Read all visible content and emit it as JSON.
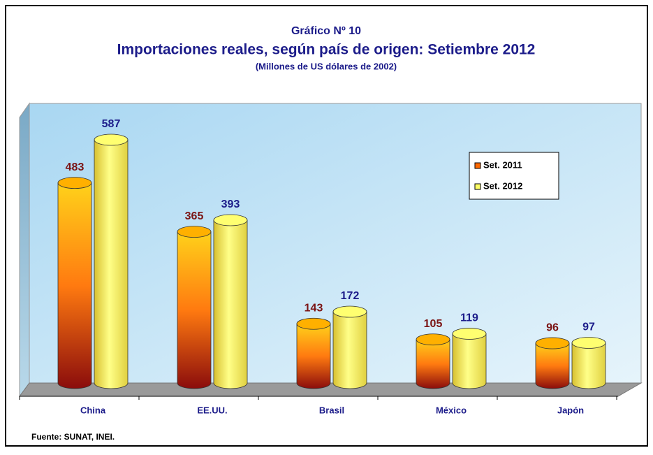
{
  "chart_data": {
    "type": "bar3d",
    "title": "Gráfico Nº 10",
    "subtitle": "Importaciones reales, según país de origen: Setiembre 2012",
    "unit_note": "(Millones de US dólares de 2002)",
    "source": "Fuente: SUNAT,  INEI.",
    "categories": [
      "China",
      "EE.UU.",
      "Brasil",
      "México",
      "Japón"
    ],
    "series": [
      {
        "name": "Set. 2011",
        "color": "#ff6a00",
        "label_color": "#7b1414",
        "values": [
          483,
          365,
          143,
          105,
          96
        ]
      },
      {
        "name": "Set. 2012",
        "color": "#ffff66",
        "label_color": "#1c1c8a",
        "values": [
          587,
          393,
          172,
          119,
          97
        ]
      }
    ],
    "legend": "upper-right"
  }
}
